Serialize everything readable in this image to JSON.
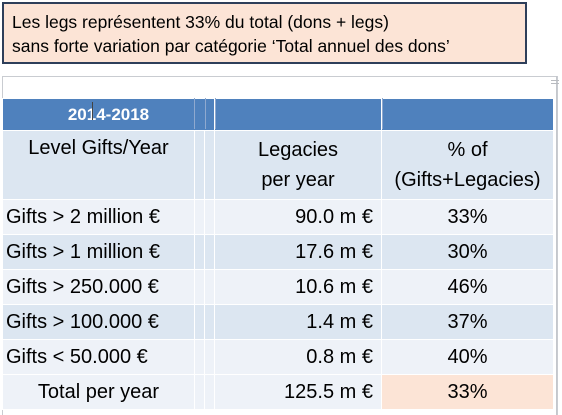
{
  "callout": {
    "line1": "Les legs représentent 33% du total (dons + legs)",
    "line2": "sans forte variation par catégorie ‘Total annuel des dons’"
  },
  "table": {
    "period": "2014-2018",
    "col_level": "Level Gifts/Year",
    "col_legacies": [
      "Legacies",
      "per year"
    ],
    "col_pct": [
      "% of",
      "(Gifts+Legacies)"
    ],
    "rows": [
      {
        "level": "Gifts > 2 million €",
        "legacies": "90.0 m €",
        "pct": "33%"
      },
      {
        "level": "Gifts > 1 million €",
        "legacies": "17.6 m €",
        "pct": "30%"
      },
      {
        "level": "Gifts > 250.000 €",
        "legacies": "10.6 m €",
        "pct": "46%"
      },
      {
        "level": "Gifts > 100.000 €",
        "legacies": "1.4 m €",
        "pct": "37%"
      },
      {
        "level": "Gifts < 50.000 €",
        "legacies": "0.8 m €",
        "pct": "40%"
      }
    ],
    "total": {
      "label": "Total per year",
      "legacies": "125.5 m €",
      "pct": "33%"
    }
  },
  "colors": {
    "header_blue": "#4f81bd",
    "row_light": "#eef2f8",
    "row_dark": "#dce6f1",
    "callout_fill": "#fce4d6",
    "callout_border": "#2e3f5a"
  }
}
